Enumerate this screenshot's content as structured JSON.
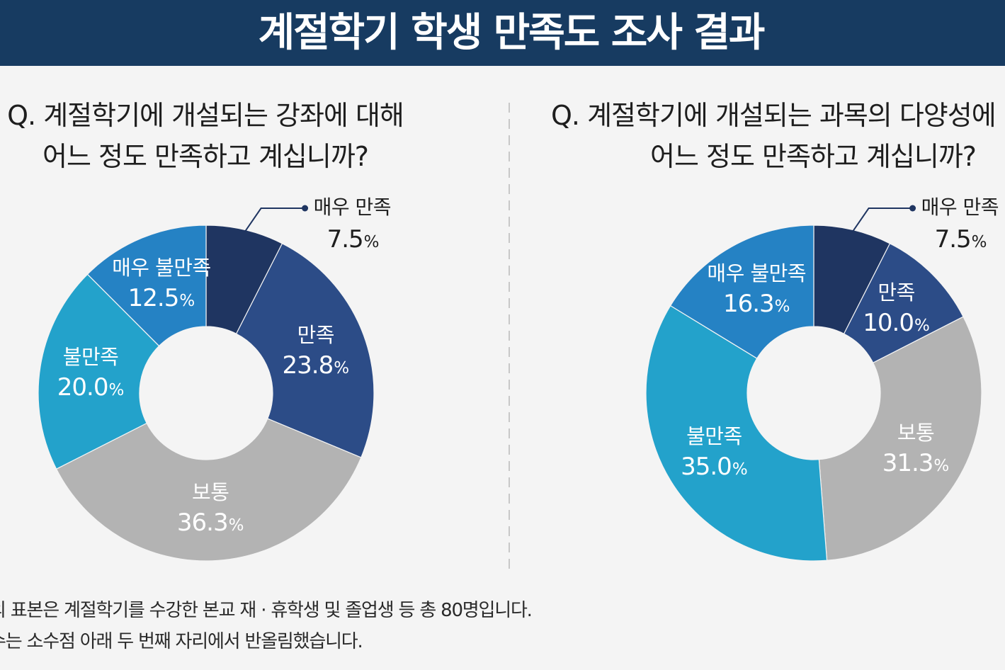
{
  "theme": {
    "header_bg": "#173b61",
    "page_bg": "#f4f4f4",
    "text": "#1e1e1e",
    "leader_line": "#1f3561",
    "divider": "#c8c8c8",
    "inside_label_text": "#ffffff"
  },
  "header": {
    "title": "계절학기 학생 만족도 조사 결과"
  },
  "chart_data": [
    {
      "type": "pie",
      "donut": true,
      "title_lines": [
        "Q. 계절학기에 개설되는 강좌에 대해",
        "어느 정도 만족하고 계십니까?"
      ],
      "categories": [
        "매우 만족",
        "만족",
        "보통",
        "불만족",
        "매우 불만족"
      ],
      "values": [
        7.5,
        23.8,
        36.3,
        20.0,
        12.5
      ],
      "unit": "%",
      "colors": [
        "#1f3561",
        "#2c4c87",
        "#b3b3b3",
        "#23a2cb",
        "#2582c4"
      ]
    },
    {
      "type": "pie",
      "donut": true,
      "title_lines": [
        "Q. 계절학기에 개설되는 과목의 다양성에",
        "어느 정도 만족하고 계십니까?"
      ],
      "categories": [
        "매우 만족",
        "만족",
        "보통",
        "불만족",
        "매우 불만족"
      ],
      "values": [
        7.5,
        10.0,
        31.3,
        35.0,
        16.3
      ],
      "unit": "%",
      "colors": [
        "#1f3561",
        "#2c4c87",
        "#b3b3b3",
        "#23a2cb",
        "#2582c4"
      ]
    }
  ],
  "footnotes": [
    "의 표본은 계절학기를 수강한 본교 재 · 휴학생 및 졸업생 등 총 80명입니다.",
    "수는 소수점 아래 두 번째 자리에서 반올림했습니다."
  ]
}
